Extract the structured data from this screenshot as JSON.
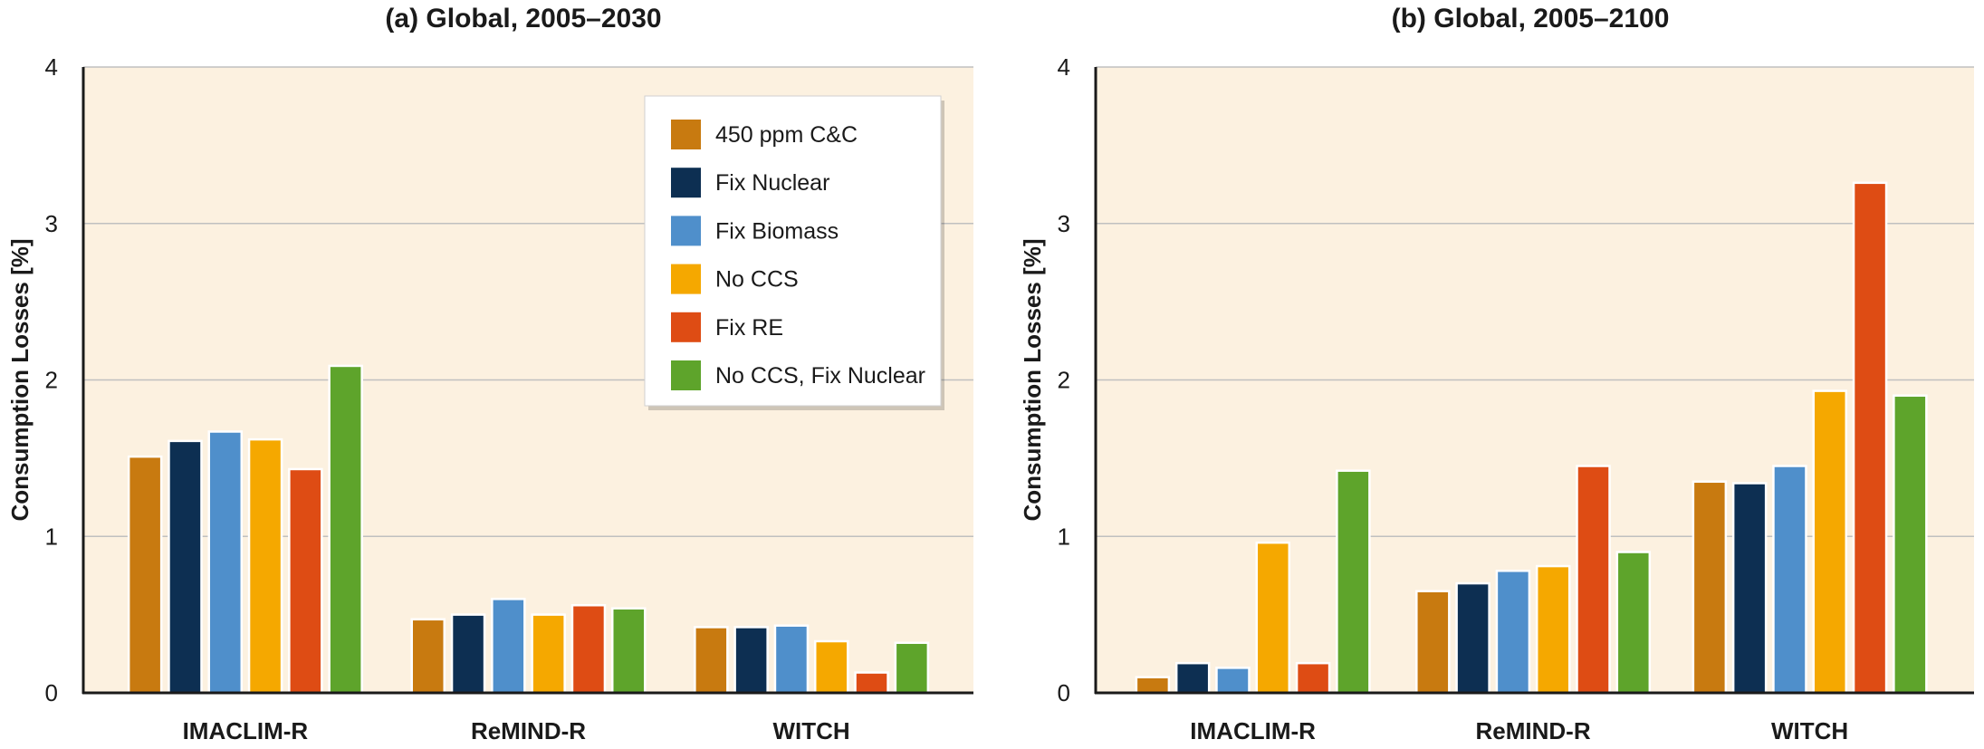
{
  "chart_data": [
    {
      "type": "bar",
      "title": "(a) Global, 2005–2030",
      "ylabel": "Consumption Losses [%]",
      "ylim": [
        0,
        4
      ],
      "yticks": [
        "0",
        "1",
        "2",
        "3",
        "4"
      ],
      "categories": [
        "IMACLIM-R",
        "ReMIND-R",
        "WITCH"
      ],
      "grid": true,
      "legend": "top-right",
      "series": [
        {
          "name": "450 ppm C&C",
          "color": "#c87a10",
          "values": [
            1.51,
            0.47,
            0.42
          ]
        },
        {
          "name": "Fix Nuclear",
          "color": "#0d2f52",
          "values": [
            1.61,
            0.5,
            0.42
          ]
        },
        {
          "name": "Fix Biomass",
          "color": "#4f8fcb",
          "values": [
            1.67,
            0.6,
            0.43
          ]
        },
        {
          "name": "No CCS",
          "color": "#f5a800",
          "values": [
            1.62,
            0.5,
            0.33
          ]
        },
        {
          "name": "Fix RE",
          "color": "#de4c14",
          "values": [
            1.43,
            0.56,
            0.13
          ]
        },
        {
          "name": "No CCS, Fix Nuclear",
          "color": "#5ea42b",
          "values": [
            2.09,
            0.54,
            0.32
          ]
        }
      ]
    },
    {
      "type": "bar",
      "title": "(b) Global, 2005–2100",
      "ylabel": "Consumption Losses [%]",
      "ylim": [
        0,
        4
      ],
      "yticks": [
        "0",
        "1",
        "2",
        "3",
        "4"
      ],
      "categories": [
        "IMACLIM-R",
        "ReMIND-R",
        "WITCH"
      ],
      "grid": true,
      "legend": "none",
      "series": [
        {
          "name": "450 ppm C&C",
          "color": "#c87a10",
          "values": [
            0.1,
            0.65,
            1.35
          ]
        },
        {
          "name": "Fix Nuclear",
          "color": "#0d2f52",
          "values": [
            0.19,
            0.7,
            1.34
          ]
        },
        {
          "name": "Fix Biomass",
          "color": "#4f8fcb",
          "values": [
            0.16,
            0.78,
            1.45
          ]
        },
        {
          "name": "No CCS",
          "color": "#f5a800",
          "values": [
            0.96,
            0.81,
            1.93
          ]
        },
        {
          "name": "Fix RE",
          "color": "#de4c14",
          "values": [
            0.19,
            1.45,
            3.26
          ]
        },
        {
          "name": "No CCS, Fix Nuclear",
          "color": "#5ea42b",
          "values": [
            1.42,
            0.9,
            1.9
          ]
        }
      ]
    }
  ],
  "colors": {
    "plot_background": "#fcf1e0",
    "grid": "#c0c0c0",
    "axis": "#1a1a1a"
  }
}
